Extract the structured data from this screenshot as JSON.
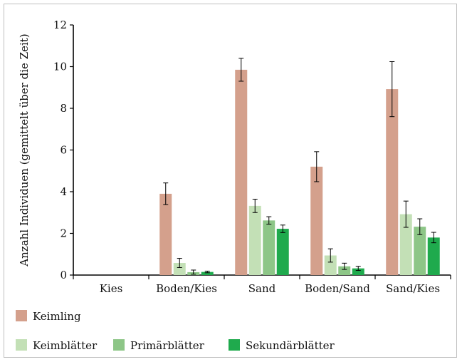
{
  "chart_data": {
    "type": "bar",
    "title": "",
    "xlabel": "",
    "ylabel": "Anzahl Individuen (gemittelt über die Zeit)",
    "ylim": [
      0,
      12
    ],
    "yticks": [
      0,
      2,
      4,
      6,
      8,
      10,
      12
    ],
    "grid": false,
    "legend_position": "bottom",
    "categories": [
      "Kies",
      "Boden/Kies",
      "Sand",
      "Boden/Sand",
      "Sand/Kies"
    ],
    "series": [
      {
        "name": "Keimling",
        "color": "#d4a08c",
        "values": [
          0,
          3.9,
          9.85,
          5.2,
          8.92
        ],
        "errors": [
          0,
          0.52,
          0.55,
          0.72,
          1.32
        ]
      },
      {
        "name": "Keimblätter",
        "color": "#c3e0b6",
        "values": [
          0,
          0.58,
          3.32,
          0.94,
          2.92
        ],
        "errors": [
          0,
          0.22,
          0.32,
          0.32,
          0.63
        ]
      },
      {
        "name": "Primärblätter",
        "color": "#8dc687",
        "values": [
          0,
          0.14,
          2.62,
          0.42,
          2.32
        ],
        "errors": [
          0,
          0.1,
          0.18,
          0.15,
          0.38
        ]
      },
      {
        "name": "Sekundärblätter",
        "color": "#1faa4d",
        "values": [
          0,
          0.15,
          2.22,
          0.32,
          1.8
        ],
        "errors": [
          0,
          0.04,
          0.18,
          0.1,
          0.25
        ]
      }
    ]
  }
}
